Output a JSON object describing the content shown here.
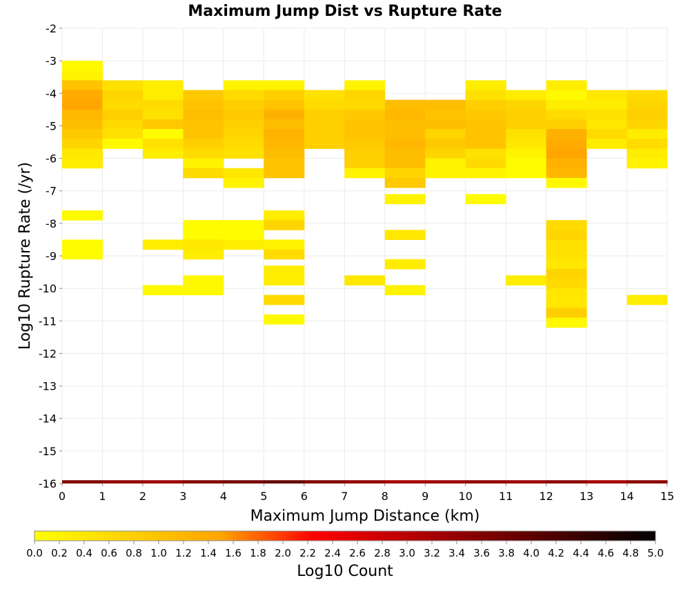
{
  "chart_data": {
    "type": "heatmap",
    "title": "Maximum Jump Dist vs Rupture Rate",
    "xlabel": "Maximum Jump Distance (km)",
    "ylabel": "Log10 Rupture Rate (/yr)",
    "xlim": [
      0,
      15
    ],
    "ylim": [
      -16,
      -2
    ],
    "x_ticks": [
      "0",
      "1",
      "2",
      "3",
      "4",
      "5",
      "6",
      "7",
      "8",
      "9",
      "10",
      "11",
      "12",
      "13",
      "14",
      "15"
    ],
    "y_ticks": [
      "-2",
      "-3",
      "-4",
      "-5",
      "-6",
      "-7",
      "-8",
      "-9",
      "-10",
      "-11",
      "-12",
      "-13",
      "-14",
      "-15",
      "-16"
    ],
    "bin_width_x": 1,
    "bin_height_y": 0.3,
    "colorbar": {
      "label": "Log10 Count",
      "range": [
        0,
        5
      ],
      "ticks": [
        "0.0",
        "0.2",
        "0.4",
        "0.6",
        "0.8",
        "1.0",
        "1.2",
        "1.4",
        "1.6",
        "1.8",
        "2.0",
        "2.2",
        "2.4",
        "2.6",
        "2.8",
        "3.0",
        "3.2",
        "3.4",
        "3.6",
        "3.8",
        "4.0",
        "4.2",
        "4.4",
        "4.6",
        "4.8",
        "5.0"
      ],
      "colors": [
        "#ffff00",
        "#ffa500",
        "#ff0000",
        "#8b0000",
        "#000000"
      ]
    },
    "cells": [
      {
        "x": 0,
        "y": -3.0,
        "v": 0.1
      },
      {
        "x": 0,
        "y": -3.3,
        "v": 0.2
      },
      {
        "x": 0,
        "y": -3.6,
        "v": 1.0
      },
      {
        "x": 0,
        "y": -3.9,
        "v": 1.4
      },
      {
        "x": 0,
        "y": -4.2,
        "v": 1.5
      },
      {
        "x": 0,
        "y": -4.5,
        "v": 1.2
      },
      {
        "x": 0,
        "y": -4.8,
        "v": 1.1
      },
      {
        "x": 0,
        "y": -5.1,
        "v": 0.9
      },
      {
        "x": 0,
        "y": -5.4,
        "v": 0.7
      },
      {
        "x": 0,
        "y": -5.7,
        "v": 0.4
      },
      {
        "x": 0,
        "y": -6.0,
        "v": 0.3
      },
      {
        "x": 0,
        "y": -7.6,
        "v": 0.1
      },
      {
        "x": 0,
        "y": -8.5,
        "v": 0.05
      },
      {
        "x": 0,
        "y": -8.8,
        "v": 0.05
      },
      {
        "x": 1,
        "y": -3.6,
        "v": 0.5
      },
      {
        "x": 1,
        "y": -3.9,
        "v": 0.7
      },
      {
        "x": 1,
        "y": -4.2,
        "v": 0.6
      },
      {
        "x": 1,
        "y": -4.5,
        "v": 0.8
      },
      {
        "x": 1,
        "y": -4.8,
        "v": 0.6
      },
      {
        "x": 1,
        "y": -5.1,
        "v": 0.5
      },
      {
        "x": 1,
        "y": -5.4,
        "v": 0.1
      },
      {
        "x": 2,
        "y": -3.6,
        "v": 0.3
      },
      {
        "x": 2,
        "y": -3.9,
        "v": 0.3
      },
      {
        "x": 2,
        "y": -4.2,
        "v": 0.6
      },
      {
        "x": 2,
        "y": -4.5,
        "v": 0.5
      },
      {
        "x": 2,
        "y": -4.8,
        "v": 0.9
      },
      {
        "x": 2,
        "y": -5.1,
        "v": 0.05
      },
      {
        "x": 2,
        "y": -5.4,
        "v": 0.5
      },
      {
        "x": 2,
        "y": -5.7,
        "v": 0.3
      },
      {
        "x": 2,
        "y": -8.5,
        "v": 0.3
      },
      {
        "x": 2,
        "y": -9.9,
        "v": 0.1
      },
      {
        "x": 3,
        "y": -3.9,
        "v": 0.9
      },
      {
        "x": 3,
        "y": -4.2,
        "v": 1.0
      },
      {
        "x": 3,
        "y": -4.5,
        "v": 1.1
      },
      {
        "x": 3,
        "y": -4.8,
        "v": 1.0
      },
      {
        "x": 3,
        "y": -5.1,
        "v": 1.0
      },
      {
        "x": 3,
        "y": -5.4,
        "v": 0.8
      },
      {
        "x": 3,
        "y": -5.7,
        "v": 0.6
      },
      {
        "x": 3,
        "y": -6.0,
        "v": 0.2
      },
      {
        "x": 3,
        "y": -6.3,
        "v": 0.6
      },
      {
        "x": 3,
        "y": -7.9,
        "v": 0.05
      },
      {
        "x": 3,
        "y": -8.2,
        "v": 0.05
      },
      {
        "x": 3,
        "y": -8.5,
        "v": 0.4
      },
      {
        "x": 3,
        "y": -8.8,
        "v": 0.3
      },
      {
        "x": 3,
        "y": -9.6,
        "v": 0.1
      },
      {
        "x": 3,
        "y": -9.9,
        "v": 0.1
      },
      {
        "x": 4,
        "y": -3.6,
        "v": 0.2
      },
      {
        "x": 4,
        "y": -3.9,
        "v": 0.6
      },
      {
        "x": 4,
        "y": -4.2,
        "v": 0.8
      },
      {
        "x": 4,
        "y": -4.5,
        "v": 0.9
      },
      {
        "x": 4,
        "y": -4.8,
        "v": 0.8
      },
      {
        "x": 4,
        "y": -5.1,
        "v": 0.7
      },
      {
        "x": 4,
        "y": -5.4,
        "v": 0.6
      },
      {
        "x": 4,
        "y": -5.7,
        "v": 0.5
      },
      {
        "x": 4,
        "y": -6.3,
        "v": 0.4
      },
      {
        "x": 4,
        "y": -6.6,
        "v": 0.2
      },
      {
        "x": 4,
        "y": -7.9,
        "v": 0.05
      },
      {
        "x": 4,
        "y": -8.2,
        "v": 0.05
      },
      {
        "x": 4,
        "y": -8.5,
        "v": 0.3
      },
      {
        "x": 5,
        "y": -3.6,
        "v": 0.2
      },
      {
        "x": 5,
        "y": -3.9,
        "v": 0.8
      },
      {
        "x": 5,
        "y": -4.2,
        "v": 1.0
      },
      {
        "x": 5,
        "y": -4.5,
        "v": 1.3
      },
      {
        "x": 5,
        "y": -4.8,
        "v": 1.1
      },
      {
        "x": 5,
        "y": -5.1,
        "v": 1.3
      },
      {
        "x": 5,
        "y": -5.4,
        "v": 1.2
      },
      {
        "x": 5,
        "y": -5.7,
        "v": 1.1
      },
      {
        "x": 5,
        "y": -6.0,
        "v": 1.0
      },
      {
        "x": 5,
        "y": -6.3,
        "v": 1.0
      },
      {
        "x": 5,
        "y": -7.6,
        "v": 0.3
      },
      {
        "x": 5,
        "y": -7.9,
        "v": 0.7
      },
      {
        "x": 5,
        "y": -8.5,
        "v": 0.2
      },
      {
        "x": 5,
        "y": -8.8,
        "v": 0.6
      },
      {
        "x": 5,
        "y": -9.3,
        "v": 0.3
      },
      {
        "x": 5,
        "y": -9.6,
        "v": 0.3
      },
      {
        "x": 5,
        "y": -10.2,
        "v": 0.6
      },
      {
        "x": 5,
        "y": -10.8,
        "v": 0.1
      },
      {
        "x": 6,
        "y": -3.9,
        "v": 0.5
      },
      {
        "x": 6,
        "y": -4.2,
        "v": 0.6
      },
      {
        "x": 6,
        "y": -4.5,
        "v": 0.8
      },
      {
        "x": 6,
        "y": -4.8,
        "v": 0.8
      },
      {
        "x": 6,
        "y": -5.1,
        "v": 0.8
      },
      {
        "x": 6,
        "y": -5.4,
        "v": 0.8
      },
      {
        "x": 7,
        "y": -3.6,
        "v": 0.2
      },
      {
        "x": 7,
        "y": -3.9,
        "v": 0.7
      },
      {
        "x": 7,
        "y": -4.2,
        "v": 0.6
      },
      {
        "x": 7,
        "y": -4.5,
        "v": 0.9
      },
      {
        "x": 7,
        "y": -4.8,
        "v": 1.0
      },
      {
        "x": 7,
        "y": -5.1,
        "v": 1.0
      },
      {
        "x": 7,
        "y": -5.4,
        "v": 0.9
      },
      {
        "x": 7,
        "y": -5.7,
        "v": 0.8
      },
      {
        "x": 7,
        "y": -6.0,
        "v": 0.8
      },
      {
        "x": 7,
        "y": -6.3,
        "v": 0.2
      },
      {
        "x": 7,
        "y": -9.6,
        "v": 0.4
      },
      {
        "x": 8,
        "y": -4.2,
        "v": 1.1
      },
      {
        "x": 8,
        "y": -4.5,
        "v": 1.2
      },
      {
        "x": 8,
        "y": -4.8,
        "v": 1.1
      },
      {
        "x": 8,
        "y": -5.1,
        "v": 1.1
      },
      {
        "x": 8,
        "y": -5.4,
        "v": 1.2
      },
      {
        "x": 8,
        "y": -5.7,
        "v": 1.1
      },
      {
        "x": 8,
        "y": -6.0,
        "v": 1.1
      },
      {
        "x": 8,
        "y": -6.3,
        "v": 0.7
      },
      {
        "x": 8,
        "y": -6.6,
        "v": 0.9
      },
      {
        "x": 8,
        "y": -7.1,
        "v": 0.2
      },
      {
        "x": 8,
        "y": -8.2,
        "v": 0.4
      },
      {
        "x": 8,
        "y": -9.1,
        "v": 0.3
      },
      {
        "x": 8,
        "y": -9.9,
        "v": 0.2
      },
      {
        "x": 9,
        "y": -4.2,
        "v": 1.1
      },
      {
        "x": 9,
        "y": -4.5,
        "v": 1.0
      },
      {
        "x": 9,
        "y": -4.8,
        "v": 1.1
      },
      {
        "x": 9,
        "y": -5.1,
        "v": 0.7
      },
      {
        "x": 9,
        "y": -5.4,
        "v": 0.9
      },
      {
        "x": 9,
        "y": -5.7,
        "v": 0.7
      },
      {
        "x": 9,
        "y": -6.0,
        "v": 0.2
      },
      {
        "x": 9,
        "y": -6.3,
        "v": 0.2
      },
      {
        "x": 10,
        "y": -3.6,
        "v": 0.3
      },
      {
        "x": 10,
        "y": -3.9,
        "v": 0.5
      },
      {
        "x": 10,
        "y": -4.2,
        "v": 0.8
      },
      {
        "x": 10,
        "y": -4.5,
        "v": 0.9
      },
      {
        "x": 10,
        "y": -4.8,
        "v": 1.0
      },
      {
        "x": 10,
        "y": -5.1,
        "v": 1.0
      },
      {
        "x": 10,
        "y": -5.4,
        "v": 1.0
      },
      {
        "x": 10,
        "y": -5.7,
        "v": 0.5
      },
      {
        "x": 10,
        "y": -6.0,
        "v": 0.6
      },
      {
        "x": 10,
        "y": -6.3,
        "v": 0.2
      },
      {
        "x": 10,
        "y": -7.1,
        "v": 0.05
      },
      {
        "x": 11,
        "y": -3.9,
        "v": 0.3
      },
      {
        "x": 11,
        "y": -4.2,
        "v": 0.7
      },
      {
        "x": 11,
        "y": -4.5,
        "v": 0.8
      },
      {
        "x": 11,
        "y": -4.8,
        "v": 0.8
      },
      {
        "x": 11,
        "y": -5.1,
        "v": 0.5
      },
      {
        "x": 11,
        "y": -5.4,
        "v": 0.4
      },
      {
        "x": 11,
        "y": -5.7,
        "v": 0.2
      },
      {
        "x": 11,
        "y": -6.0,
        "v": 0.05
      },
      {
        "x": 11,
        "y": -6.3,
        "v": 0.05
      },
      {
        "x": 11,
        "y": -9.6,
        "v": 0.3
      },
      {
        "x": 12,
        "y": -3.6,
        "v": 0.3
      },
      {
        "x": 12,
        "y": -3.9,
        "v": 0.1
      },
      {
        "x": 12,
        "y": -4.2,
        "v": 0.3
      },
      {
        "x": 12,
        "y": -4.5,
        "v": 0.6
      },
      {
        "x": 12,
        "y": -4.8,
        "v": 0.8
      },
      {
        "x": 12,
        "y": -5.1,
        "v": 1.3
      },
      {
        "x": 12,
        "y": -5.4,
        "v": 1.4
      },
      {
        "x": 12,
        "y": -5.7,
        "v": 1.5
      },
      {
        "x": 12,
        "y": -6.0,
        "v": 1.3
      },
      {
        "x": 12,
        "y": -6.3,
        "v": 1.2
      },
      {
        "x": 12,
        "y": -6.6,
        "v": 0.1
      },
      {
        "x": 12,
        "y": -7.9,
        "v": 0.6
      },
      {
        "x": 12,
        "y": -8.2,
        "v": 0.7
      },
      {
        "x": 12,
        "y": -8.5,
        "v": 0.5
      },
      {
        "x": 12,
        "y": -8.8,
        "v": 0.5
      },
      {
        "x": 12,
        "y": -9.1,
        "v": 0.4
      },
      {
        "x": 12,
        "y": -9.4,
        "v": 0.7
      },
      {
        "x": 12,
        "y": -9.7,
        "v": 0.6
      },
      {
        "x": 12,
        "y": -10.0,
        "v": 0.4
      },
      {
        "x": 12,
        "y": -10.3,
        "v": 0.4
      },
      {
        "x": 12,
        "y": -10.6,
        "v": 0.8
      },
      {
        "x": 12,
        "y": -10.9,
        "v": 0.1
      },
      {
        "x": 13,
        "y": -3.9,
        "v": 0.4
      },
      {
        "x": 13,
        "y": -4.2,
        "v": 0.3
      },
      {
        "x": 13,
        "y": -4.5,
        "v": 0.5
      },
      {
        "x": 13,
        "y": -4.8,
        "v": 0.4
      },
      {
        "x": 13,
        "y": -5.1,
        "v": 0.6
      },
      {
        "x": 13,
        "y": -5.4,
        "v": 0.3
      },
      {
        "x": 14,
        "y": -3.9,
        "v": 0.6
      },
      {
        "x": 14,
        "y": -4.2,
        "v": 0.7
      },
      {
        "x": 14,
        "y": -4.5,
        "v": 0.8
      },
      {
        "x": 14,
        "y": -4.8,
        "v": 0.7
      },
      {
        "x": 14,
        "y": -5.1,
        "v": 0.3
      },
      {
        "x": 14,
        "y": -5.4,
        "v": 0.6
      },
      {
        "x": 14,
        "y": -5.7,
        "v": 0.3
      },
      {
        "x": 14,
        "y": -6.0,
        "v": 0.2
      },
      {
        "x": 14,
        "y": -10.2,
        "v": 0.3
      }
    ],
    "bottom_row": {
      "y": -16,
      "values": [
        3.6,
        3.4,
        3.3,
        3.6,
        3.7,
        3.9,
        3.6,
        3.4,
        3.2,
        3.3,
        3.4,
        3.3,
        3.5,
        3.2,
        3.5
      ]
    }
  }
}
